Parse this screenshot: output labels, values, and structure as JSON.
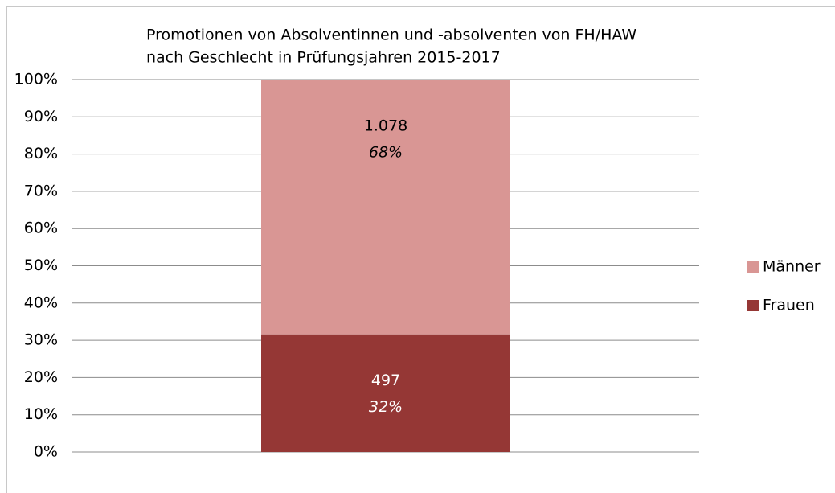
{
  "chart_data": {
    "type": "stacked_bar",
    "title": [
      "Promotionen von Absolventinnen und -absolventen von FH/HAW",
      "nach Geschlecht in Prüfungsjahren 2015-2017"
    ],
    "categories": [
      null
    ],
    "series": [
      {
        "name": "Frauen",
        "color": "#953735",
        "label_color": "#ffffff",
        "values": [
          31.6
        ],
        "value_labels": [
          "32%"
        ],
        "count_labels": [
          "497"
        ]
      },
      {
        "name": "Männer",
        "color": "#d99694",
        "label_color": "#000000",
        "values": [
          68.4
        ],
        "value_labels": [
          "68%"
        ],
        "count_labels": [
          "1.078"
        ]
      }
    ],
    "ylim": [
      0,
      100
    ],
    "yticks": [
      {
        "value": 0,
        "label": "0%"
      },
      {
        "value": 10,
        "label": "10%"
      },
      {
        "value": 20,
        "label": "20%"
      },
      {
        "value": 30,
        "label": "30%"
      },
      {
        "value": 40,
        "label": "40%"
      },
      {
        "value": 50,
        "label": "50%"
      },
      {
        "value": 60,
        "label": "60%"
      },
      {
        "value": 70,
        "label": "70%"
      },
      {
        "value": 80,
        "label": "80%"
      },
      {
        "value": 90,
        "label": "90%"
      },
      {
        "value": 100,
        "label": "100%"
      }
    ],
    "grid": true,
    "legend": "right"
  }
}
